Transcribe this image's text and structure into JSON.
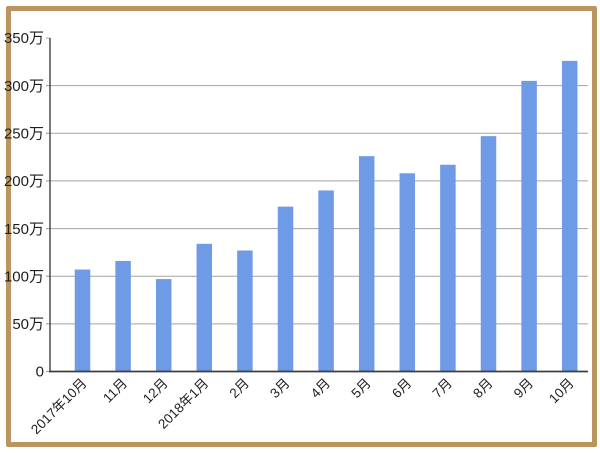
{
  "chart_data": {
    "type": "bar",
    "title": "",
    "xlabel": "",
    "ylabel": "",
    "unit": "万",
    "categories": [
      "2017年10月",
      "11月",
      "12月",
      "2018年1月",
      "2月",
      "3月",
      "4月",
      "5月",
      "6月",
      "7月",
      "8月",
      "9月",
      "10月"
    ],
    "values": [
      107,
      116,
      97,
      134,
      127,
      173,
      190,
      226,
      208,
      217,
      247,
      305,
      326
    ],
    "ylim": [
      0,
      350
    ],
    "ytick_step": 50,
    "ytick_labels": [
      "0",
      "50万",
      "100万",
      "150万",
      "200万",
      "250万",
      "300万",
      "350万"
    ],
    "gridlines_at": [
      50,
      100,
      150,
      200,
      250,
      300
    ],
    "grid": true,
    "legend": false,
    "colors": {
      "bar": "#6e9ae6",
      "grid": "#a3a3a3",
      "axis": "#3f3f3f",
      "text": "#1f1f1f",
      "frame_border": "#b9965f",
      "background": "#ffffff"
    }
  }
}
